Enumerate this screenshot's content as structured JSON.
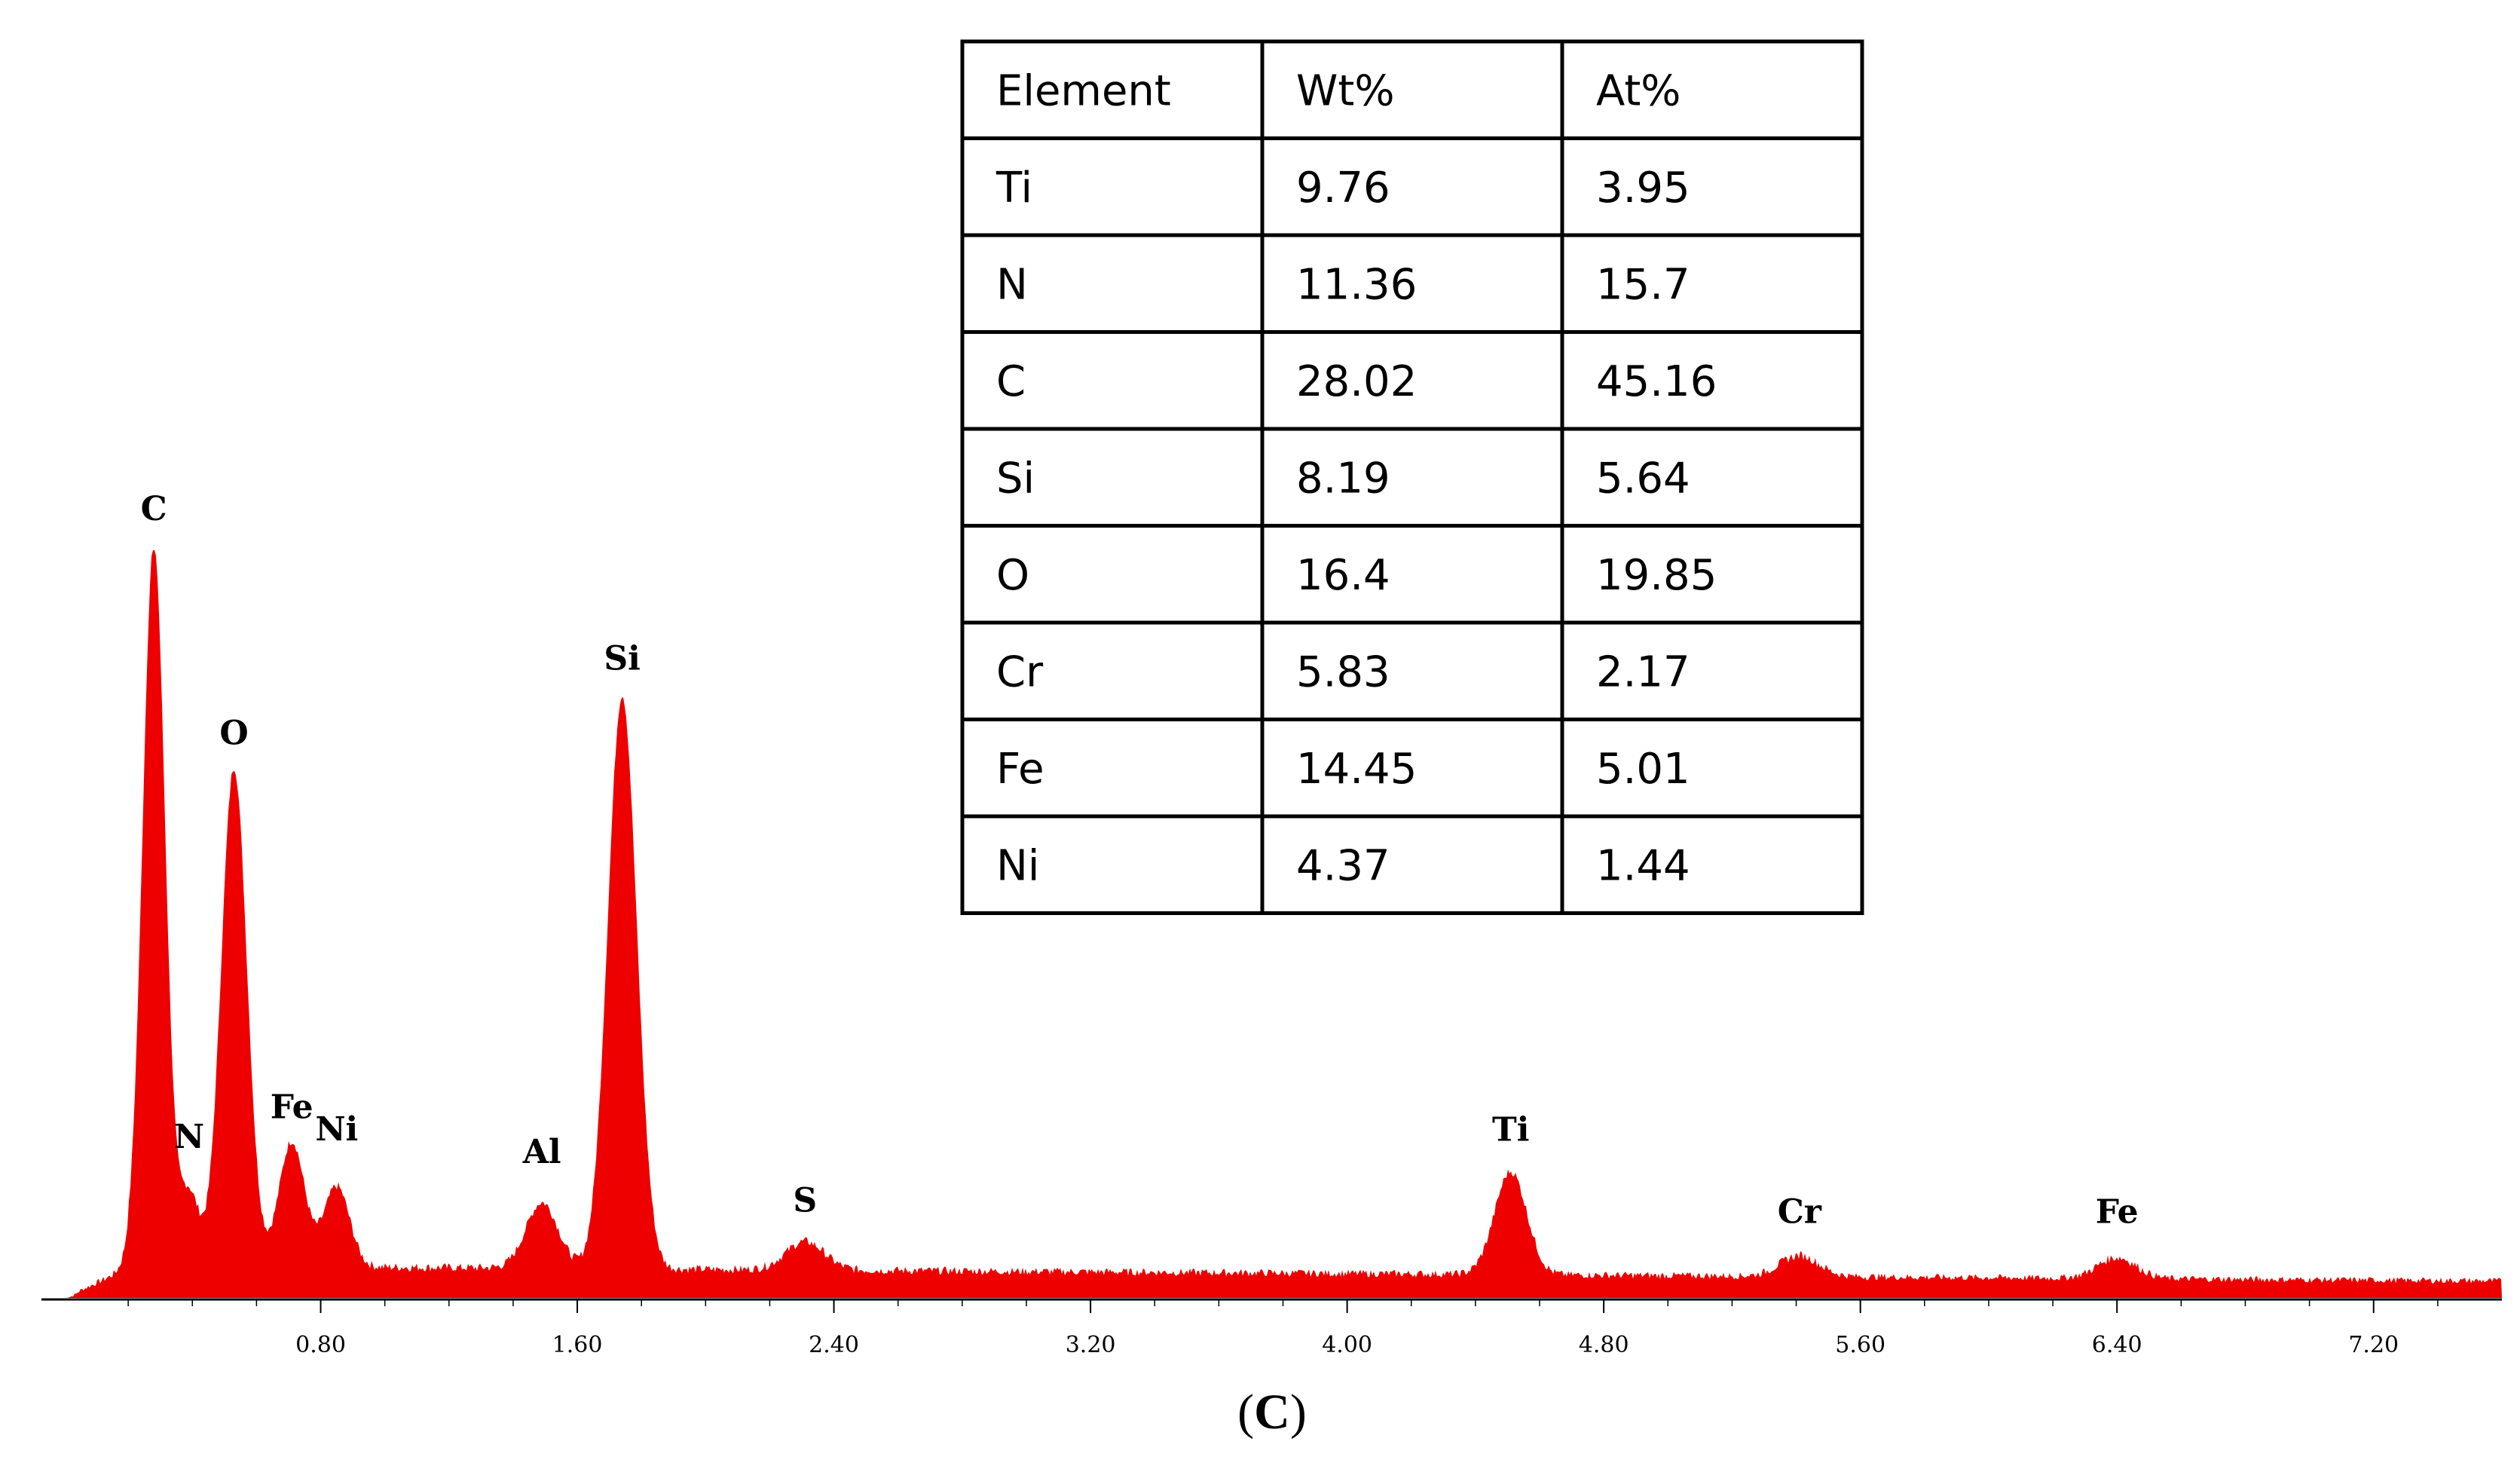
{
  "chart_data": {
    "type": "area",
    "title": "",
    "xlabel": "",
    "ylabel": "",
    "xlim": [
      0.0,
      7.6
    ],
    "ylim": [
      0,
      100
    ],
    "color": "#ee0000",
    "x_ticks": [
      "0.80",
      "1.60",
      "2.40",
      "3.20",
      "4.00",
      "4.80",
      "5.60",
      "6.40",
      "7.20"
    ],
    "x_tick_values": [
      0.8,
      1.6,
      2.4,
      3.2,
      4.0,
      4.8,
      5.6,
      6.4,
      7.2
    ],
    "baseline": 4,
    "peaks": [
      {
        "label": "C",
        "x": 0.28,
        "height": 100
      },
      {
        "label": "N",
        "x": 0.39,
        "height": 13
      },
      {
        "label": "O",
        "x": 0.53,
        "height": 70
      },
      {
        "label": "Fe",
        "x": 0.71,
        "height": 20
      },
      {
        "label": "Ni",
        "x": 0.85,
        "height": 14
      },
      {
        "label": "Al",
        "x": 1.49,
        "height": 12
      },
      {
        "label": "Si",
        "x": 1.74,
        "height": 80
      },
      {
        "label": "S",
        "x": 2.31,
        "height": 7
      },
      {
        "label": "Ti",
        "x": 4.51,
        "height": 17
      },
      {
        "label": "Cr",
        "x": 5.41,
        "height": 6
      },
      {
        "label": "Fe",
        "x": 6.4,
        "height": 6
      }
    ],
    "table": {
      "headers": [
        "Element",
        "Wt%",
        "At%"
      ],
      "rows": [
        [
          "Ti",
          "9.76",
          "3.95"
        ],
        [
          "N",
          "11.36",
          "15.7"
        ],
        [
          "C",
          "28.02",
          "45.16"
        ],
        [
          "Si",
          "8.19",
          "5.64"
        ],
        [
          "O",
          "16.4",
          "19.85"
        ],
        [
          "Cr",
          "5.83",
          "2.17"
        ],
        [
          "Fe",
          "14.45",
          "5.01"
        ],
        [
          "Ni",
          "4.37",
          "1.44"
        ]
      ]
    },
    "caption_open": "(",
    "caption_letter": "C",
    "caption_close": ")"
  }
}
